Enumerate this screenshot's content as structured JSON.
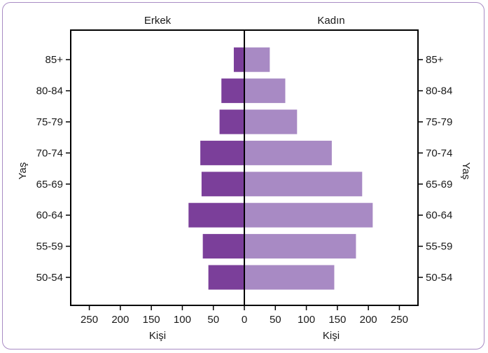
{
  "chart_data": {
    "type": "bar",
    "subtype": "population-pyramid",
    "categories": [
      "50-54",
      "55-59",
      "60-64",
      "65-69",
      "70-74",
      "75-79",
      "80-84",
      "85+"
    ],
    "series": [
      {
        "name": "Erkek",
        "values": [
          58,
          67,
          90,
          69,
          71,
          40,
          37,
          17
        ],
        "color": "#7b3f9a"
      },
      {
        "name": "Kadın",
        "values": [
          145,
          180,
          207,
          190,
          141,
          85,
          66,
          41
        ],
        "color": "#a88ac4"
      }
    ],
    "xlabel": "Kişi",
    "ylabel": "Yaş",
    "xlim": [
      -280,
      280
    ],
    "xticks": [
      250,
      200,
      150,
      100,
      50,
      0,
      50,
      100,
      150,
      200,
      250
    ],
    "grid": false
  }
}
